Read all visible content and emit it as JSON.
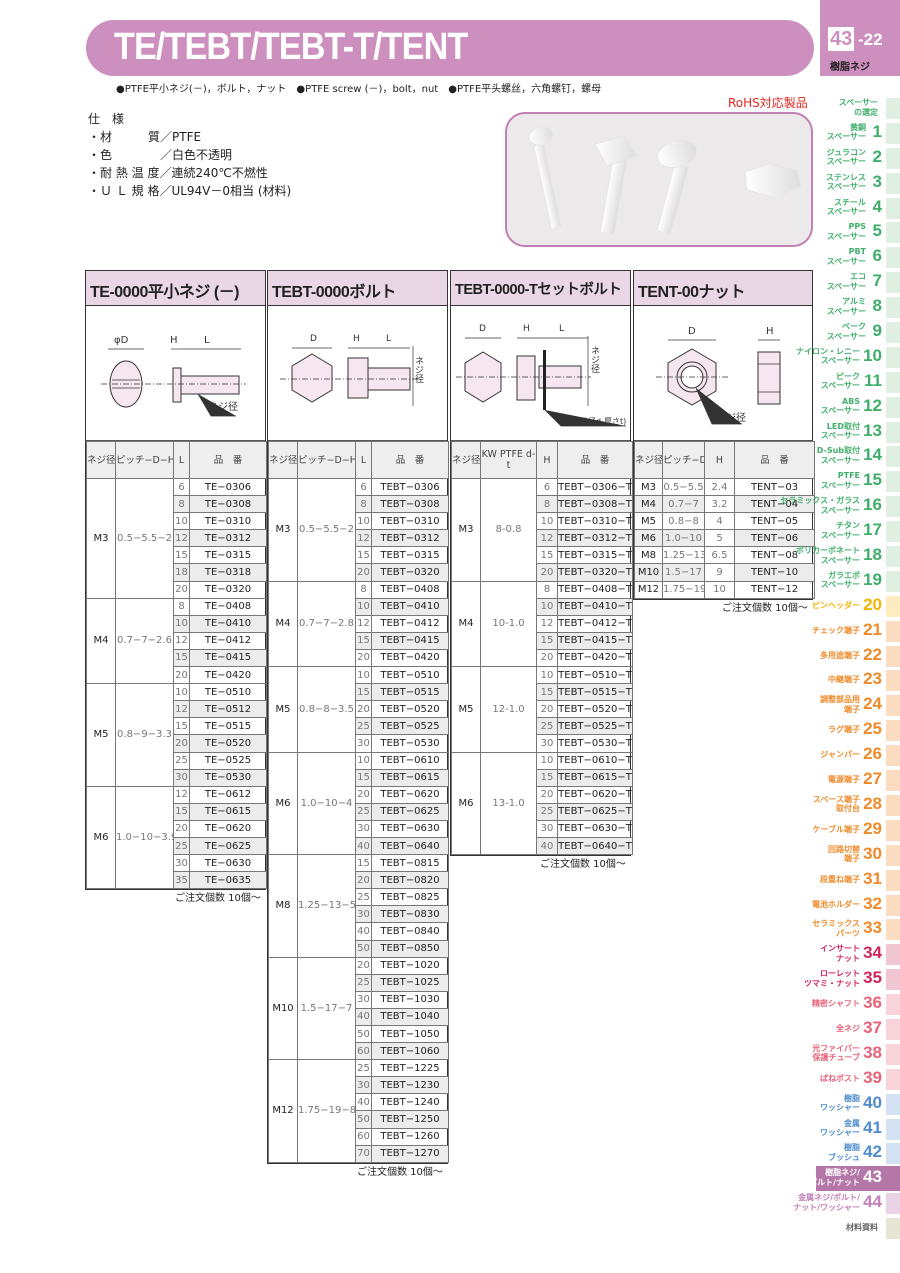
{
  "header": {
    "title": "TE/TEBT/TEBT-T/TENT",
    "page_num": "43",
    "page_sub": "-22",
    "category": "樹脂ネジ",
    "subtitle": "●PTFE平小ネジ(－)，ボルト，ナット　●PTFE screw (－)，bolt，nut　●PTFE平头螺丝，六角螺钉，螺母"
  },
  "spec": {
    "heading": "仕　様",
    "lines": [
      "・材　　　質／PTFE",
      "・色　　　　／白色不透明",
      "・耐 熱 温 度／連続240℃不燃性",
      "・Ｕ Ｌ 規 格／UL94V－0相当 (材料)"
    ]
  },
  "rohs": "RoHS対応製品",
  "colors": {
    "brand": "#cd8fbe",
    "header_fill": "#ead7e6"
  },
  "tables": [
    {
      "title": "TE-0000平小ネジ (－)",
      "diagram_labels": [
        "φD",
        "H",
        "L",
        "ネジ径"
      ],
      "headers": [
        "ネジ径",
        "ピッチ−D−H",
        "L",
        "品　番"
      ],
      "note": "ご注文個数 10個〜",
      "groups": [
        {
          "size": "M3",
          "spec": "0.5−5.5−2",
          "rows": [
            [
              "6",
              "TE−0306"
            ],
            [
              "8",
              "TE−0308"
            ],
            [
              "10",
              "TE−0310"
            ],
            [
              "12",
              "TE−0312"
            ],
            [
              "15",
              "TE−0315"
            ],
            [
              "18",
              "TE−0318"
            ],
            [
              "20",
              "TE−0320"
            ]
          ]
        },
        {
          "size": "M4",
          "spec": "0.7−7−2.6",
          "rows": [
            [
              "8",
              "TE−0408"
            ],
            [
              "10",
              "TE−0410"
            ],
            [
              "12",
              "TE−0412"
            ],
            [
              "15",
              "TE−0415"
            ],
            [
              "20",
              "TE−0420"
            ]
          ]
        },
        {
          "size": "M5",
          "spec": "0.8−9−3.3",
          "rows": [
            [
              "10",
              "TE−0510"
            ],
            [
              "12",
              "TE−0512"
            ],
            [
              "15",
              "TE−0515"
            ],
            [
              "20",
              "TE−0520"
            ],
            [
              "25",
              "TE−0525"
            ],
            [
              "30",
              "TE−0530"
            ]
          ]
        },
        {
          "size": "M6",
          "spec": "1.0−10−3.9",
          "rows": [
            [
              "12",
              "TE−0612"
            ],
            [
              "15",
              "TE−0615"
            ],
            [
              "20",
              "TE−0620"
            ],
            [
              "25",
              "TE−0625"
            ],
            [
              "30",
              "TE−0630"
            ],
            [
              "35",
              "TE−0635"
            ]
          ]
        }
      ]
    },
    {
      "title": "TEBT-0000ボルト",
      "diagram_labels": [
        "D",
        "H",
        "L",
        "ネジ径"
      ],
      "headers": [
        "ネジ径",
        "ピッチ−D−H",
        "L",
        "品　番"
      ],
      "note": "ご注文個数 10個〜",
      "groups": [
        {
          "size": "M3",
          "spec": "0.5−5.5−2",
          "rows": [
            [
              "6",
              "TEBT−0306"
            ],
            [
              "8",
              "TEBT−0308"
            ],
            [
              "10",
              "TEBT−0310"
            ],
            [
              "12",
              "TEBT−0312"
            ],
            [
              "15",
              "TEBT−0315"
            ],
            [
              "20",
              "TEBT−0320"
            ]
          ]
        },
        {
          "size": "M4",
          "spec": "0.7−7−2.8",
          "rows": [
            [
              "8",
              "TEBT−0408"
            ],
            [
              "10",
              "TEBT−0410"
            ],
            [
              "12",
              "TEBT−0412"
            ],
            [
              "15",
              "TEBT−0415"
            ],
            [
              "20",
              "TEBT−0420"
            ]
          ]
        },
        {
          "size": "M5",
          "spec": "0.8−8−3.5",
          "rows": [
            [
              "10",
              "TEBT−0510"
            ],
            [
              "15",
              "TEBT−0515"
            ],
            [
              "20",
              "TEBT−0520"
            ],
            [
              "25",
              "TEBT−0525"
            ],
            [
              "30",
              "TEBT−0530"
            ]
          ]
        },
        {
          "size": "M6",
          "spec": "1.0−10−4",
          "rows": [
            [
              "10",
              "TEBT−0610"
            ],
            [
              "15",
              "TEBT−0615"
            ],
            [
              "20",
              "TEBT−0620"
            ],
            [
              "25",
              "TEBT−0625"
            ],
            [
              "30",
              "TEBT−0630"
            ],
            [
              "40",
              "TEBT−0640"
            ]
          ]
        },
        {
          "size": "M8",
          "spec": "1.25−13−5.5",
          "rows": [
            [
              "15",
              "TEBT−0815"
            ],
            [
              "20",
              "TEBT−0820"
            ],
            [
              "25",
              "TEBT−0825"
            ],
            [
              "30",
              "TEBT−0830"
            ],
            [
              "40",
              "TEBT−0840"
            ],
            [
              "50",
              "TEBT−0850"
            ]
          ]
        },
        {
          "size": "M10",
          "spec": "1.5−17−7",
          "rows": [
            [
              "20",
              "TEBT−1020"
            ],
            [
              "25",
              "TEBT−1025"
            ],
            [
              "30",
              "TEBT−1030"
            ],
            [
              "40",
              "TEBT−1040"
            ],
            [
              "50",
              "TEBT−1050"
            ],
            [
              "60",
              "TEBT−1060"
            ]
          ]
        },
        {
          "size": "M12",
          "spec": "1.75−19−8",
          "rows": [
            [
              "25",
              "TEBT−1225"
            ],
            [
              "30",
              "TEBT−1230"
            ],
            [
              "40",
              "TEBT−1240"
            ],
            [
              "50",
              "TEBT−1250"
            ],
            [
              "60",
              "TEBT−1260"
            ],
            [
              "70",
              "TEBT−1270"
            ]
          ]
        }
      ]
    },
    {
      "title": "TEBT-0000-Tセットボルト",
      "diagram_labels": [
        "D",
        "H",
        "L",
        "ネジ径",
        "KW(外径d-厚さt)"
      ],
      "headers": [
        "ネジ径",
        "KW PTFE d-t",
        "H",
        "品　番"
      ],
      "note": "ご注文個数 10個〜",
      "groups": [
        {
          "size": "M3",
          "spec": "8-0.8",
          "rows": [
            [
              "6",
              "TEBT−0306−T"
            ],
            [
              "8",
              "TEBT−0308−T"
            ],
            [
              "10",
              "TEBT−0310−T"
            ],
            [
              "12",
              "TEBT−0312−T"
            ],
            [
              "15",
              "TEBT−0315−T"
            ],
            [
              "20",
              "TEBT−0320−T"
            ]
          ]
        },
        {
          "size": "M4",
          "spec": "10-1.0",
          "rows": [
            [
              "8",
              "TEBT−0408−T"
            ],
            [
              "10",
              "TEBT−0410−T"
            ],
            [
              "12",
              "TEBT−0412−T"
            ],
            [
              "15",
              "TEBT−0415−T"
            ],
            [
              "20",
              "TEBT−0420−T"
            ]
          ]
        },
        {
          "size": "M5",
          "spec": "12-1.0",
          "rows": [
            [
              "10",
              "TEBT−0510−T"
            ],
            [
              "15",
              "TEBT−0515−T"
            ],
            [
              "20",
              "TEBT−0520−T"
            ],
            [
              "25",
              "TEBT−0525−T"
            ],
            [
              "30",
              "TEBT−0530−T"
            ]
          ]
        },
        {
          "size": "M6",
          "spec": "13-1.0",
          "rows": [
            [
              "10",
              "TEBT−0610−T"
            ],
            [
              "15",
              "TEBT−0615−T"
            ],
            [
              "20",
              "TEBT−0620−T"
            ],
            [
              "25",
              "TEBT−0625−T"
            ],
            [
              "30",
              "TEBT−0630−T"
            ],
            [
              "40",
              "TEBT−0640−T"
            ]
          ]
        }
      ]
    },
    {
      "title": "TENT-00ナット",
      "diagram_labels": [
        "D",
        "H",
        "ネジ径"
      ],
      "headers": [
        "ネジ径",
        "ピッチ−D",
        "H",
        "品　番"
      ],
      "note": "ご注文個数 10個〜",
      "rows": [
        [
          "M3",
          "0.5−5.5",
          "2.4",
          "TENT−03"
        ],
        [
          "M4",
          "0.7−7",
          "3.2",
          "TENT−04"
        ],
        [
          "M5",
          "0.8−8",
          "4",
          "TENT−05"
        ],
        [
          "M6",
          "1.0−10",
          "5",
          "TENT−06"
        ],
        [
          "M8",
          "1.25−13",
          "6.5",
          "TENT−08"
        ],
        [
          "M10",
          "1.5−17",
          "9",
          "TENT−10"
        ],
        [
          "M12",
          "1.75−19",
          "10",
          "TENT−12"
        ]
      ]
    }
  ],
  "sidebar": [
    {
      "label": "スペーサー\nの選定",
      "num": "",
      "color": "#3fae6a",
      "bg": "#dff0e3"
    },
    {
      "label": "黄銅\nスペーサー",
      "num": "1",
      "color": "#3fae6a",
      "bg": "#dff0e3"
    },
    {
      "label": "ジュラコン\nスペーサー",
      "num": "2",
      "color": "#3fae6a",
      "bg": "#dff0e3"
    },
    {
      "label": "ステンレス\nスペーサー",
      "num": "3",
      "color": "#3fae6a",
      "bg": "#dff0e3"
    },
    {
      "label": "スチール\nスペーサー",
      "num": "4",
      "color": "#3fae6a",
      "bg": "#dff0e3"
    },
    {
      "label": "PPS\nスペーサー",
      "num": "5",
      "color": "#3fae6a",
      "bg": "#dff0e3"
    },
    {
      "label": "PBT\nスペーサー",
      "num": "6",
      "color": "#3fae6a",
      "bg": "#dff0e3"
    },
    {
      "label": "エコ\nスペーサー",
      "num": "7",
      "color": "#3fae6a",
      "bg": "#dff0e3"
    },
    {
      "label": "アルミ\nスペーサー",
      "num": "8",
      "color": "#3fae6a",
      "bg": "#dff0e3"
    },
    {
      "label": "ベーク\nスペーサー",
      "num": "9",
      "color": "#3fae6a",
      "bg": "#dff0e3"
    },
    {
      "label": "ナイロン・レニー\nスペーサー",
      "num": "10",
      "color": "#3fae6a",
      "bg": "#dff0e3"
    },
    {
      "label": "ピーク\nスペーサー",
      "num": "11",
      "color": "#3fae6a",
      "bg": "#dff0e3"
    },
    {
      "label": "ABS\nスペーサー",
      "num": "12",
      "color": "#3fae6a",
      "bg": "#dff0e3"
    },
    {
      "label": "LED取付\nスペーサー",
      "num": "13",
      "color": "#3fae6a",
      "bg": "#dff0e3"
    },
    {
      "label": "D-Sub取付\nスペーサー",
      "num": "14",
      "color": "#3fae6a",
      "bg": "#dff0e3"
    },
    {
      "label": "PTFE\nスペーサー",
      "num": "15",
      "color": "#3fae6a",
      "bg": "#dff0e3"
    },
    {
      "label": "セラミックス・ガラス\nスペーサー",
      "num": "16",
      "color": "#3fae6a",
      "bg": "#dff0e3"
    },
    {
      "label": "チタン\nスペーサー",
      "num": "17",
      "color": "#3fae6a",
      "bg": "#dff0e3"
    },
    {
      "label": "ポリカーボネート\nスペーサー",
      "num": "18",
      "color": "#3fae6a",
      "bg": "#dff0e3"
    },
    {
      "label": "ガラエポ\nスペーサー",
      "num": "19",
      "color": "#3fae6a",
      "bg": "#dff0e3"
    },
    {
      "label": "ピンヘッダー",
      "num": "20",
      "color": "#f2b600",
      "bg": "#fdecc0"
    },
    {
      "label": "チェック端子",
      "num": "21",
      "color": "#ef8a2a",
      "bg": "#fbdcc0"
    },
    {
      "label": "多用途端子",
      "num": "22",
      "color": "#ef8a2a",
      "bg": "#fbdcc0"
    },
    {
      "label": "中継端子",
      "num": "23",
      "color": "#ef8a2a",
      "bg": "#fbdcc0"
    },
    {
      "label": "調整部品用\n端子",
      "num": "24",
      "color": "#ef8a2a",
      "bg": "#fbdcc0"
    },
    {
      "label": "ラグ端子",
      "num": "25",
      "color": "#ef8a2a",
      "bg": "#fbdcc0"
    },
    {
      "label": "ジャンパー",
      "num": "26",
      "color": "#ef8a2a",
      "bg": "#fbdcc0"
    },
    {
      "label": "電源端子",
      "num": "27",
      "color": "#ef8a2a",
      "bg": "#fbdcc0"
    },
    {
      "label": "スペース端子\n取付台",
      "num": "28",
      "color": "#ef8a2a",
      "bg": "#fbdcc0"
    },
    {
      "label": "ケーブル端子",
      "num": "29",
      "color": "#ef8a2a",
      "bg": "#fbdcc0"
    },
    {
      "label": "回路切替\n端子",
      "num": "30",
      "color": "#ef8a2a",
      "bg": "#fbdcc0"
    },
    {
      "label": "段重ね端子",
      "num": "31",
      "color": "#ef8a2a",
      "bg": "#fbdcc0"
    },
    {
      "label": "電池ホルダー",
      "num": "32",
      "color": "#ef8a2a",
      "bg": "#fbdcc0"
    },
    {
      "label": "セラミックス\nパーツ",
      "num": "33",
      "color": "#ef8a2a",
      "bg": "#fbdcc0"
    },
    {
      "label": "インサート\nナット",
      "num": "34",
      "color": "#d0245a",
      "bg": "#f0c6d2"
    },
    {
      "label": "ローレット\nツマミ・ナット",
      "num": "35",
      "color": "#d0245a",
      "bg": "#f0c6d2"
    },
    {
      "label": "精密シャフト",
      "num": "36",
      "color": "#e8637a",
      "bg": "#f8d4da"
    },
    {
      "label": "全ネジ",
      "num": "37",
      "color": "#e8637a",
      "bg": "#f8d4da"
    },
    {
      "label": "光ファイバー\n保護チューブ",
      "num": "38",
      "color": "#e8637a",
      "bg": "#f8d4da"
    },
    {
      "label": "ばねポスト",
      "num": "39",
      "color": "#e8637a",
      "bg": "#f8d4da"
    },
    {
      "label": "樹脂\nワッシャー",
      "num": "40",
      "color": "#4e8ccc",
      "bg": "#d3e2f3"
    },
    {
      "label": "金属\nワッシャー",
      "num": "41",
      "color": "#4e8ccc",
      "bg": "#d3e2f3"
    },
    {
      "label": "樹脂\nブッシュ",
      "num": "42",
      "color": "#4e8ccc",
      "bg": "#d3e2f3"
    },
    {
      "label": "樹脂ネジ/\nボルト/ナット",
      "num": "43",
      "color": "#ffffff",
      "bg": "#b577a8",
      "active": true
    },
    {
      "label": "金属ネジ/ボルト/\nナット/ワッシャー",
      "num": "44",
      "color": "#c27fb8",
      "bg": "#ead3e6"
    },
    {
      "label": "材料資料",
      "num": "",
      "color": "#666666",
      "bg": "#e6e4d2"
    }
  ]
}
